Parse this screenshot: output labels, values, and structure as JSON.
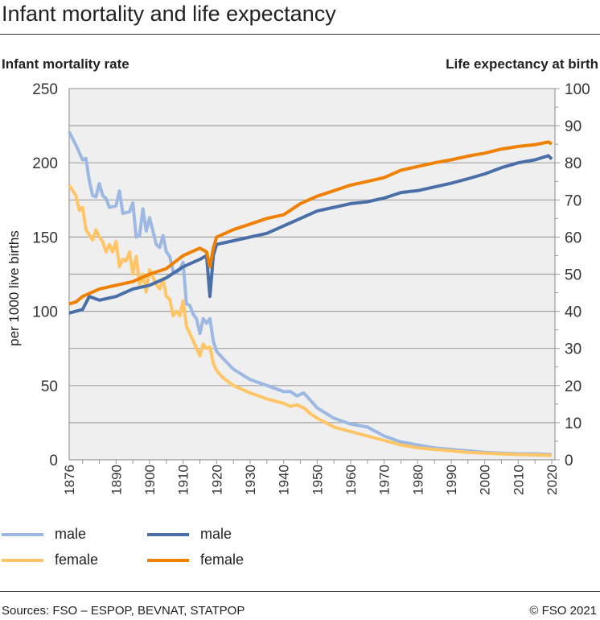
{
  "title": "Infant mortality and life expectancy",
  "sources": "Sources: FSO – ESPOP, BEVNAT, STATPOP",
  "copyright": "© FSO 2021",
  "chart_data": {
    "type": "line",
    "title": "Infant mortality and life expectancy",
    "y_left_label": "Infant mortality rate",
    "y_left_unit": "per 1000 live births",
    "y_right_label": "Life expectancy at birth",
    "ylim_left": [
      0,
      250
    ],
    "ylim_right": [
      0,
      100
    ],
    "xlim": [
      1876,
      2020
    ],
    "y_left_ticks": [
      "0",
      "50",
      "100",
      "150",
      "200",
      "250"
    ],
    "y_right_ticks": [
      "0",
      "10",
      "20",
      "30",
      "40",
      "50",
      "60",
      "70",
      "80",
      "90",
      "100"
    ],
    "x_ticks": [
      "1876",
      "1890",
      "1900",
      "1910",
      "1920",
      "1930",
      "1940",
      "1950",
      "1960",
      "1970",
      "1980",
      "1990",
      "2000",
      "2010",
      "2020"
    ],
    "grid": true,
    "legend": {
      "position": "bottom",
      "entries": [
        {
          "label": "male",
          "series": "im_male"
        },
        {
          "label": "female",
          "series": "im_female"
        },
        {
          "label": "male",
          "series": "le_male"
        },
        {
          "label": "female",
          "series": "le_female"
        }
      ]
    },
    "series": [
      {
        "id": "im_male",
        "name": "Infant mortality male",
        "axis": "left",
        "color": "#9db8e2",
        "x": [
          1876,
          1878,
          1880,
          1881,
          1882,
          1883,
          1884,
          1885,
          1886,
          1887,
          1888,
          1890,
          1891,
          1892,
          1894,
          1895,
          1896,
          1897,
          1898,
          1899,
          1900,
          1902,
          1903,
          1904,
          1905,
          1906,
          1907,
          1908,
          1909,
          1910,
          1911,
          1912,
          1913,
          1914,
          1915,
          1916,
          1917,
          1918,
          1919,
          1920,
          1922,
          1925,
          1930,
          1935,
          1940,
          1942,
          1944,
          1946,
          1948,
          1950,
          1955,
          1960,
          1965,
          1970,
          1975,
          1980,
          1985,
          1990,
          1995,
          2000,
          2005,
          2010,
          2015,
          2020
        ],
        "values": [
          221,
          212,
          202,
          203,
          188,
          178,
          177,
          186,
          178,
          176,
          170,
          171,
          181,
          166,
          167,
          173,
          150,
          151,
          169,
          154,
          163,
          145,
          143,
          151,
          140,
          137,
          127,
          126,
          128,
          133,
          105,
          104,
          98,
          95,
          85,
          95,
          92,
          95,
          80,
          73,
          68,
          61,
          54,
          50,
          46,
          46,
          43,
          45,
          40,
          35,
          28,
          24,
          22,
          16,
          12,
          10,
          8,
          7,
          6,
          5,
          4.5,
          4,
          4,
          3.5
        ]
      },
      {
        "id": "im_female",
        "name": "Infant mortality female",
        "axis": "left",
        "color": "#ffc566",
        "x": [
          1876,
          1878,
          1879,
          1880,
          1881,
          1883,
          1884,
          1885,
          1886,
          1887,
          1888,
          1889,
          1890,
          1891,
          1892,
          1893,
          1894,
          1895,
          1896,
          1897,
          1898,
          1899,
          1900,
          1902,
          1903,
          1904,
          1905,
          1906,
          1907,
          1908,
          1909,
          1910,
          1911,
          1912,
          1913,
          1914,
          1915,
          1916,
          1917,
          1918,
          1919,
          1920,
          1922,
          1925,
          1930,
          1935,
          1940,
          1942,
          1944,
          1946,
          1948,
          1950,
          1955,
          1960,
          1965,
          1970,
          1975,
          1980,
          1985,
          1990,
          1995,
          2000,
          2005,
          2010,
          2015,
          2020
        ],
        "values": [
          185,
          178,
          168,
          170,
          155,
          148,
          155,
          150,
          147,
          140,
          145,
          140,
          147,
          130,
          135,
          134,
          140,
          125,
          137,
          118,
          125,
          113,
          128,
          118,
          115,
          122,
          110,
          108,
          97,
          100,
          97,
          107,
          90,
          85,
          80,
          75,
          70,
          78,
          75,
          76,
          65,
          60,
          55,
          50,
          45,
          41,
          38,
          36,
          37,
          35,
          31,
          28,
          22,
          19,
          16,
          13,
          10,
          8,
          7,
          6,
          5,
          4.5,
          4,
          3.5,
          3.3,
          3
        ]
      },
      {
        "id": "le_male",
        "name": "Life expectancy male",
        "axis": "right",
        "color": "#4a6fa8",
        "x": [
          1876,
          1878,
          1880,
          1882,
          1885,
          1890,
          1895,
          1900,
          1905,
          1910,
          1915,
          1917,
          1918,
          1919,
          1920,
          1925,
          1930,
          1935,
          1940,
          1945,
          1950,
          1955,
          1960,
          1965,
          1970,
          1975,
          1980,
          1985,
          1990,
          1995,
          2000,
          2005,
          2010,
          2015,
          2019,
          2020
        ],
        "values": [
          39.5,
          40,
          40.5,
          44,
          43,
          44,
          46,
          47,
          49,
          52,
          54,
          55,
          44,
          55,
          58,
          59,
          60,
          61,
          63,
          65,
          67,
          68,
          69,
          69.5,
          70.5,
          72,
          72.5,
          73.5,
          74.5,
          75.7,
          77,
          78.7,
          80,
          80.8,
          81.9,
          81
        ]
      },
      {
        "id": "le_female",
        "name": "Life expectancy female",
        "axis": "right",
        "color": "#f08000",
        "x": [
          1876,
          1878,
          1880,
          1885,
          1890,
          1895,
          1900,
          1905,
          1910,
          1915,
          1917,
          1918,
          1919,
          1920,
          1925,
          1930,
          1935,
          1940,
          1945,
          1950,
          1955,
          1960,
          1965,
          1970,
          1975,
          1980,
          1985,
          1990,
          1995,
          2000,
          2005,
          2010,
          2015,
          2019,
          2020
        ],
        "values": [
          42,
          42.5,
          44,
          46,
          47,
          48,
          50,
          51.5,
          55,
          57,
          56,
          52,
          57,
          60,
          62,
          63.5,
          65,
          66,
          69,
          71,
          72.5,
          74,
          75,
          76,
          78,
          79,
          80,
          80.8,
          81.8,
          82.6,
          83.7,
          84.4,
          84.9,
          85.6,
          85.1
        ]
      }
    ]
  }
}
